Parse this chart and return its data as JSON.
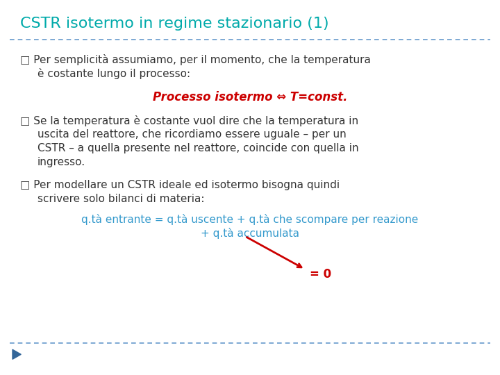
{
  "title": "CSTR isotermo in regime stazionario (1)",
  "title_color": "#00AAAA",
  "bg_color": "#FFFFFF",
  "separator_color": "#6699CC",
  "bullet_color": "#333333",
  "bullet1_line1": "Per semplicità assumiamo, per il momento, che la temperatura",
  "bullet1_line2": "è costante lungo il processo:",
  "isotermo_text": "Processo isotermo ⇔ T=const.",
  "isotermo_color": "#CC0000",
  "bullet2_line1": "Se la temperatura è costante vuol dire che la temperatura in",
  "bullet2_line2": "uscita del reattore, che ricordiamo essere uguale – per un",
  "bullet2_line3": "CSTR – a quella presente nel reattore, coincide con quella in",
  "bullet2_line4": "ingresso.",
  "bullet3_line1": "Per modellare un CSTR ideale ed isotermo bisogna quindi",
  "bullet3_line2": "scrivere solo bilanci di materia:",
  "balance_line1": "q.tà entrante = q.tà uscente + q.tà che scompare per reazione",
  "balance_line2": "+ q.tà accumulata",
  "balance_color": "#3399CC",
  "zero_text": "= 0",
  "zero_color": "#CC0000",
  "arrow_color": "#CC0000",
  "footer_triangle_color": "#336699"
}
